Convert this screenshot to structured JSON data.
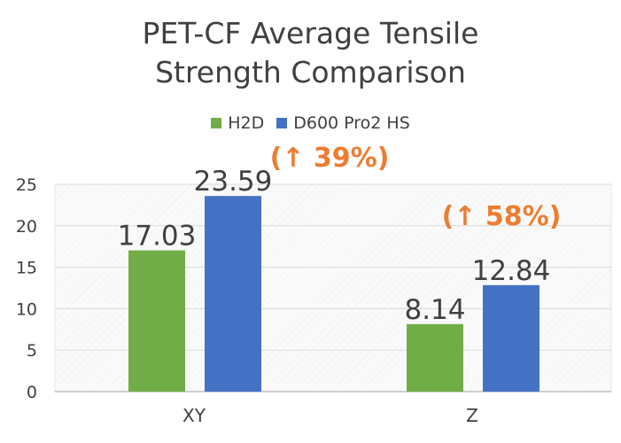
{
  "chart_data": {
    "type": "bar",
    "title_line1": "PET-CF Average Tensile",
    "title_line2": "Strength Comparison",
    "categories": [
      "XY",
      "Z"
    ],
    "series": [
      {
        "name": "H2D",
        "values": [
          17.03,
          8.14
        ],
        "color": "#70ad47"
      },
      {
        "name": "D600 Pro2 HS",
        "values": [
          23.59,
          12.84
        ],
        "color": "#4472c4"
      }
    ],
    "data_labels": [
      [
        "17.03",
        "8.14"
      ],
      [
        "23.59",
        "12.84"
      ]
    ],
    "annotations": [
      "(↑ 39%)",
      "(↑ 58%)"
    ],
    "annotation_color": "#ed7d31",
    "ylim": [
      0,
      25
    ],
    "yticks": [
      "0",
      "5",
      "10",
      "15",
      "20",
      "25"
    ],
    "grid": true,
    "legend_position": "top"
  }
}
